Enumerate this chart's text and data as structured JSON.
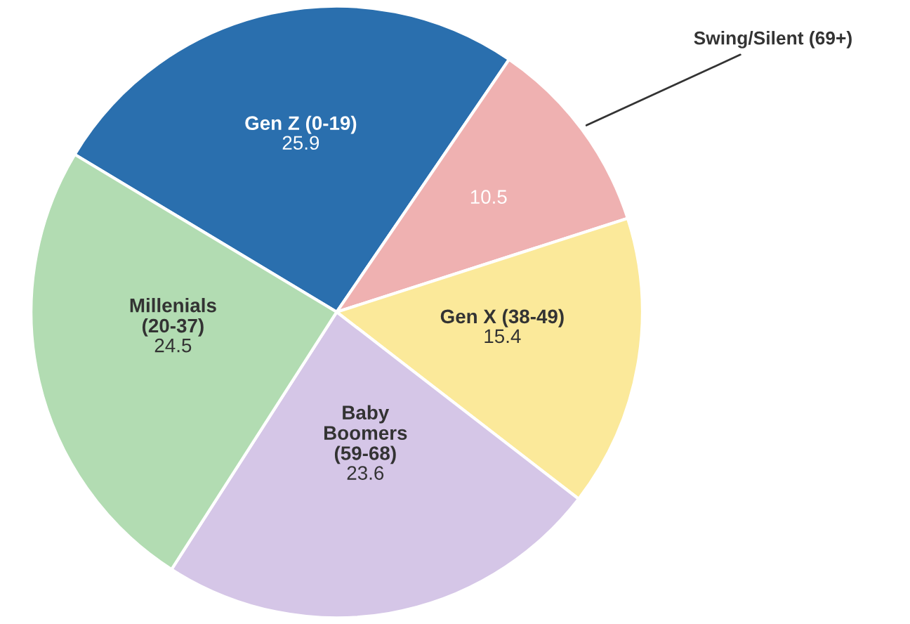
{
  "chart_data": {
    "type": "pie",
    "categories": [
      "Gen Z (0-19)",
      "Swing/Silent (69+)",
      "Gen X (38-49)",
      "Baby\nBoomers\n(59-68)",
      "Millenials\n(20-37)"
    ],
    "values": [
      25.9,
      10.5,
      15.4,
      23.6,
      24.5
    ],
    "colors": [
      "#2a6fae",
      "#efb1b1",
      "#fbe99a",
      "#d5c6e7",
      "#b2dcb2"
    ],
    "data_labels": true,
    "legend": false
  }
}
